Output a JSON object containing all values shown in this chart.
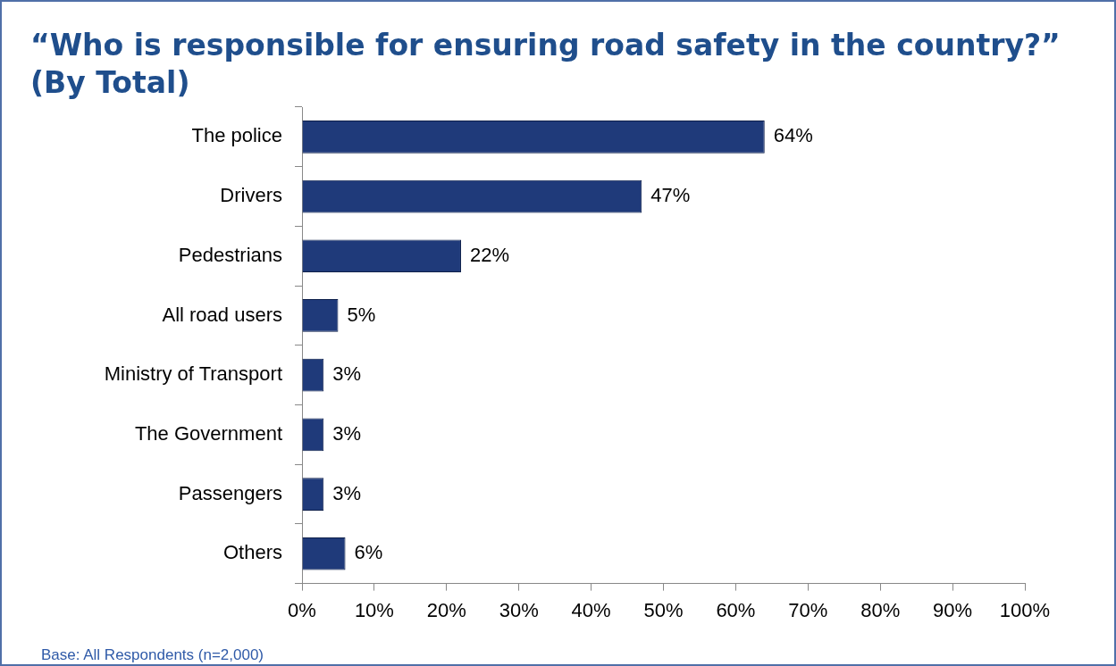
{
  "chart_data": {
    "type": "bar",
    "orientation": "horizontal",
    "title": "“Who is responsible for ensuring road safety in the country?” (By Total)",
    "categories": [
      "The police",
      "Drivers",
      "Pedestrians",
      "All road users",
      "Ministry of Transport",
      "The Government",
      "Passengers",
      "Others"
    ],
    "values": [
      64,
      47,
      22,
      5,
      3,
      3,
      3,
      6
    ],
    "value_labels": [
      "64%",
      "47%",
      "22%",
      "5%",
      "3%",
      "3%",
      "3%",
      "6%"
    ],
    "color": "#1f3a7a",
    "xlim": [
      0,
      100
    ],
    "xticks": [
      {
        "value": 0,
        "label": "0%"
      },
      {
        "value": 10,
        "label": "10%"
      },
      {
        "value": 20,
        "label": "20%"
      },
      {
        "value": 30,
        "label": "30%"
      },
      {
        "value": 40,
        "label": "40%"
      },
      {
        "value": 50,
        "label": "50%"
      },
      {
        "value": 60,
        "label": "60%"
      },
      {
        "value": 70,
        "label": "70%"
      },
      {
        "value": 80,
        "label": "80%"
      },
      {
        "value": 90,
        "label": "90%"
      },
      {
        "value": 100,
        "label": "100%"
      }
    ],
    "annotations": [
      "Base: All Respondents (n=2,000)"
    ],
    "legend": false
  }
}
